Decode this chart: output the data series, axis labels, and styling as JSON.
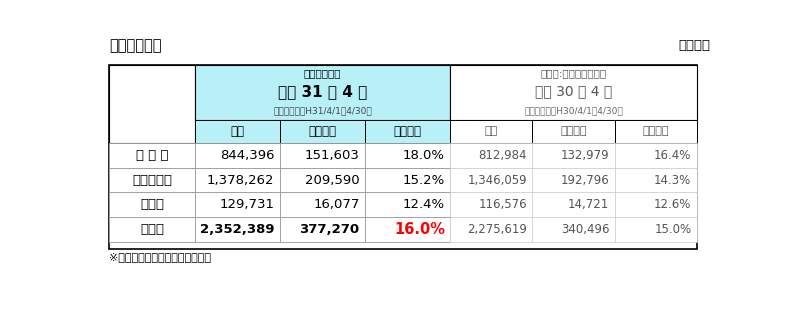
{
  "title_left": "【調査結果】",
  "title_right": "単位：個",
  "header_current_label1": "（今回調査）",
  "header_current_label2": "平成 31 年 4 月",
  "header_current_label3": "（調査期間：H31/4/1～4/30）",
  "header_ref_label1": "（参考:前年同月調査）",
  "header_ref_label2": "平成 30 年 4 月",
  "header_ref_label3": "（調査期間：H30/4/1～4/30）",
  "col_headers_current": [
    "総数",
    "再配達数",
    "再配達率"
  ],
  "col_headers_ref": [
    "総数",
    "再配達数",
    "再配達率"
  ],
  "row_labels": [
    "都 市 部",
    "都市部近郊",
    "地　方",
    "総　計"
  ],
  "current_data": [
    [
      "844,396",
      "151,603",
      "18.0%"
    ],
    [
      "1,378,262",
      "209,590",
      "15.2%"
    ],
    [
      "129,731",
      "16,077",
      "12.4%"
    ],
    [
      "2,352,389",
      "377,270",
      "16.0%"
    ]
  ],
  "ref_data": [
    [
      "812,984",
      "132,979",
      "16.4%"
    ],
    [
      "1,346,059",
      "192,796",
      "14.3%"
    ],
    [
      "116,576",
      "14,721",
      "12.6%"
    ],
    [
      "2,275,619",
      "340,496",
      "15.0%"
    ]
  ],
  "highlight_cell": [
    3,
    2
  ],
  "highlight_color": "#FF0000",
  "current_header_bg": "#B8F0F8",
  "current_col_bg": "#B8F0F8",
  "footer_note": "※大手宅配事業者３社の合計数値"
}
